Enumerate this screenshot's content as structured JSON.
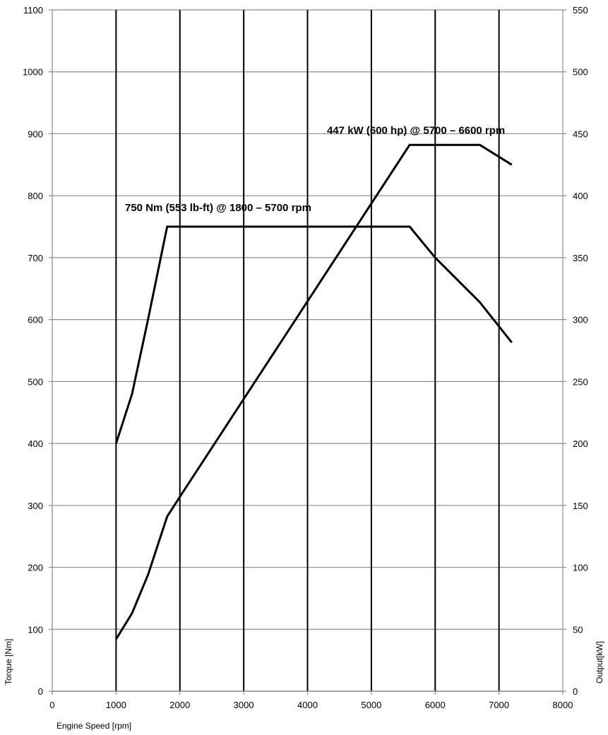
{
  "chart_data": {
    "type": "line",
    "title": "",
    "xlabel": "Engine Speed [rpm]",
    "ylabel_left": "Torque [Nm]",
    "ylabel_right": "Output[kW]",
    "xlim": [
      0,
      8000
    ],
    "ylim_left": [
      0,
      1100
    ],
    "ylim_right": [
      0,
      550
    ],
    "x_ticks": [
      "0",
      "1000",
      "2000",
      "3000",
      "4000",
      "5000",
      "6000",
      "7000",
      "8000"
    ],
    "y_ticks_left": [
      "0",
      "100",
      "200",
      "300",
      "400",
      "500",
      "600",
      "700",
      "800",
      "900",
      "1000",
      "1100"
    ],
    "y_ticks_right": [
      "0",
      "50",
      "100",
      "150",
      "200",
      "250",
      "300",
      "350",
      "400",
      "450",
      "500",
      "550"
    ],
    "grid": "horizontal gridlines every 100 Nm; vertical black lines every 1000 rpm from 1000 to 7000",
    "series": [
      {
        "axis": "left",
        "points": [
          [
            1000,
            400
          ],
          [
            1250,
            480
          ],
          [
            1500,
            600
          ],
          [
            1800,
            750
          ],
          [
            5600,
            750
          ],
          [
            6000,
            700
          ],
          [
            6700,
            628
          ],
          [
            7200,
            563
          ]
        ]
      },
      {
        "axis": "right",
        "points": [
          [
            1000,
            42
          ],
          [
            1250,
            63
          ],
          [
            1500,
            94
          ],
          [
            1800,
            141
          ],
          [
            2000,
            157
          ],
          [
            5600,
            441
          ],
          [
            6700,
            441
          ],
          [
            7200,
            425
          ]
        ]
      }
    ],
    "annotations": [
      {
        "text": "750 Nm (553 lb-ft) @ 1800 – 5700 rpm",
        "x": 2600,
        "y": 775,
        "axis": "left"
      },
      {
        "text": "447 kW (600 hp) @ 5700 – 6600 rpm",
        "x": 5700,
        "y": 450,
        "axis": "right"
      }
    ]
  }
}
